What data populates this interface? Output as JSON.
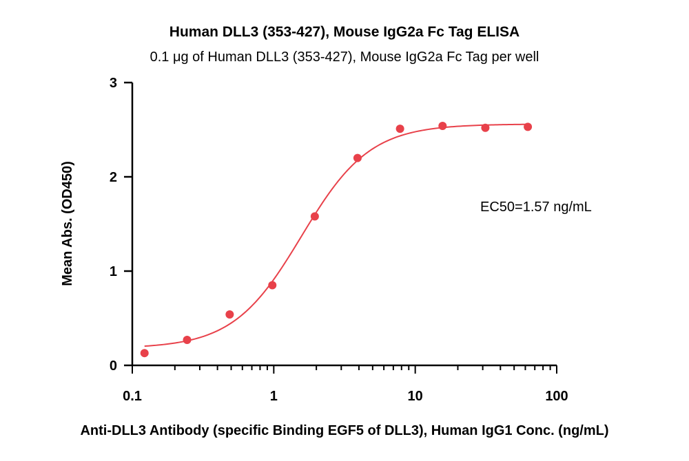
{
  "chart_data": {
    "type": "scatter",
    "title": "Human DLL3 (353-427), Mouse IgG2a Fc Tag ELISA",
    "subtitle": "0.1 μg of Human DLL3 (353-427), Mouse IgG2a Fc Tag per well",
    "xlabel": "Anti-DLL3 Antibody (specific Binding EGF5 of DLL3), Human IgG1 Conc. (ng/mL)",
    "ylabel": "Mean Abs. (OD450)",
    "xscale": "log",
    "xlim": [
      0.1,
      100
    ],
    "ylim": [
      0,
      3
    ],
    "xticks": [
      0.1,
      1,
      10,
      100
    ],
    "xtick_labels": [
      "0.1",
      "1",
      "10",
      "100"
    ],
    "yticks": [
      0,
      1,
      2,
      3
    ],
    "ytick_labels": [
      "0",
      "1",
      "2",
      "3"
    ],
    "grid": false,
    "color": "#e8414a",
    "series": [
      {
        "x": [
          0.122,
          0.244,
          0.488,
          0.977,
          1.95,
          3.91,
          7.81,
          15.6,
          31.3,
          62.5
        ],
        "y": [
          0.13,
          0.27,
          0.54,
          0.85,
          1.58,
          2.2,
          2.51,
          2.54,
          2.52,
          2.53
        ]
      }
    ],
    "fit": {
      "model": "4PL",
      "bottom": 0.18,
      "top": 2.56,
      "ec50": 1.57,
      "hill": 1.8
    },
    "annotation": "EC50=1.57 ng/mL"
  }
}
